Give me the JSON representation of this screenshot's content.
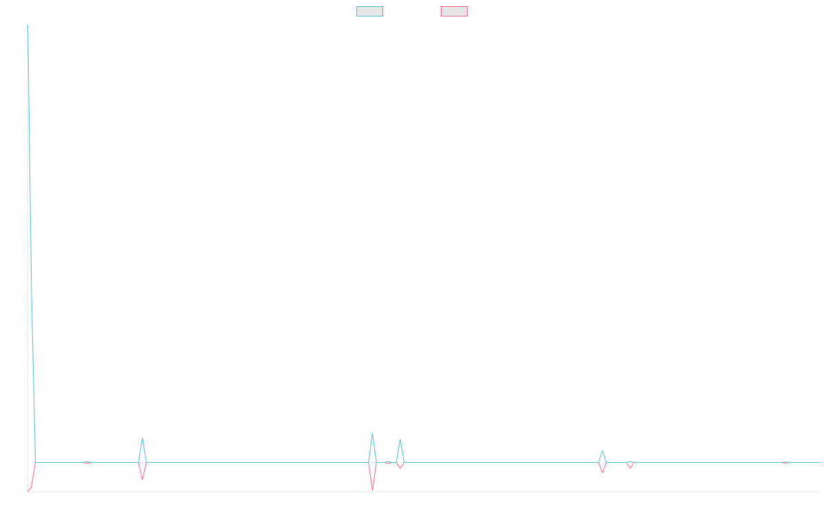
{
  "chart_data": {
    "type": "line",
    "title": "",
    "xlabel": "",
    "ylabel": "",
    "legend_position": "top-center",
    "grid": false,
    "x_range": [
      0,
      100
    ],
    "y_range": [
      -100,
      1500
    ],
    "series": [
      {
        "color": "#4bc0c0",
        "points": [
          [
            0,
            1600
          ],
          [
            0.5,
            600
          ],
          [
            1,
            0
          ],
          [
            7,
            0
          ],
          [
            7.5,
            3
          ],
          [
            8,
            0
          ],
          [
            14,
            0
          ],
          [
            14.5,
            85
          ],
          [
            15,
            0
          ],
          [
            43,
            0
          ],
          [
            43.5,
            100
          ],
          [
            44,
            0
          ],
          [
            45,
            0
          ],
          [
            45.5,
            3
          ],
          [
            46,
            0
          ],
          [
            46.5,
            0
          ],
          [
            47,
            80
          ],
          [
            47.5,
            0
          ],
          [
            72,
            0
          ],
          [
            72.5,
            40
          ],
          [
            73,
            0
          ],
          [
            75.5,
            0
          ],
          [
            76,
            3
          ],
          [
            76.5,
            0
          ],
          [
            95,
            0
          ],
          [
            95.5,
            2
          ],
          [
            96,
            0
          ],
          [
            100,
            0
          ]
        ]
      },
      {
        "color": "#ff6384",
        "points": [
          [
            0,
            -100
          ],
          [
            0.5,
            -85
          ],
          [
            1,
            0
          ],
          [
            7,
            0
          ],
          [
            7.5,
            -3
          ],
          [
            8,
            0
          ],
          [
            14,
            0
          ],
          [
            14.5,
            -60
          ],
          [
            15,
            0
          ],
          [
            43,
            0
          ],
          [
            43.5,
            -95
          ],
          [
            44,
            0
          ],
          [
            45,
            0
          ],
          [
            45.5,
            -3
          ],
          [
            46,
            0
          ],
          [
            46.5,
            0
          ],
          [
            47,
            -20
          ],
          [
            47.5,
            0
          ],
          [
            72,
            0
          ],
          [
            72.5,
            -35
          ],
          [
            73,
            0
          ],
          [
            75.5,
            0
          ],
          [
            76,
            -20
          ],
          [
            76.5,
            0
          ],
          [
            95,
            0
          ],
          [
            95.5,
            -2
          ],
          [
            96,
            0
          ],
          [
            100,
            0
          ]
        ]
      }
    ]
  }
}
